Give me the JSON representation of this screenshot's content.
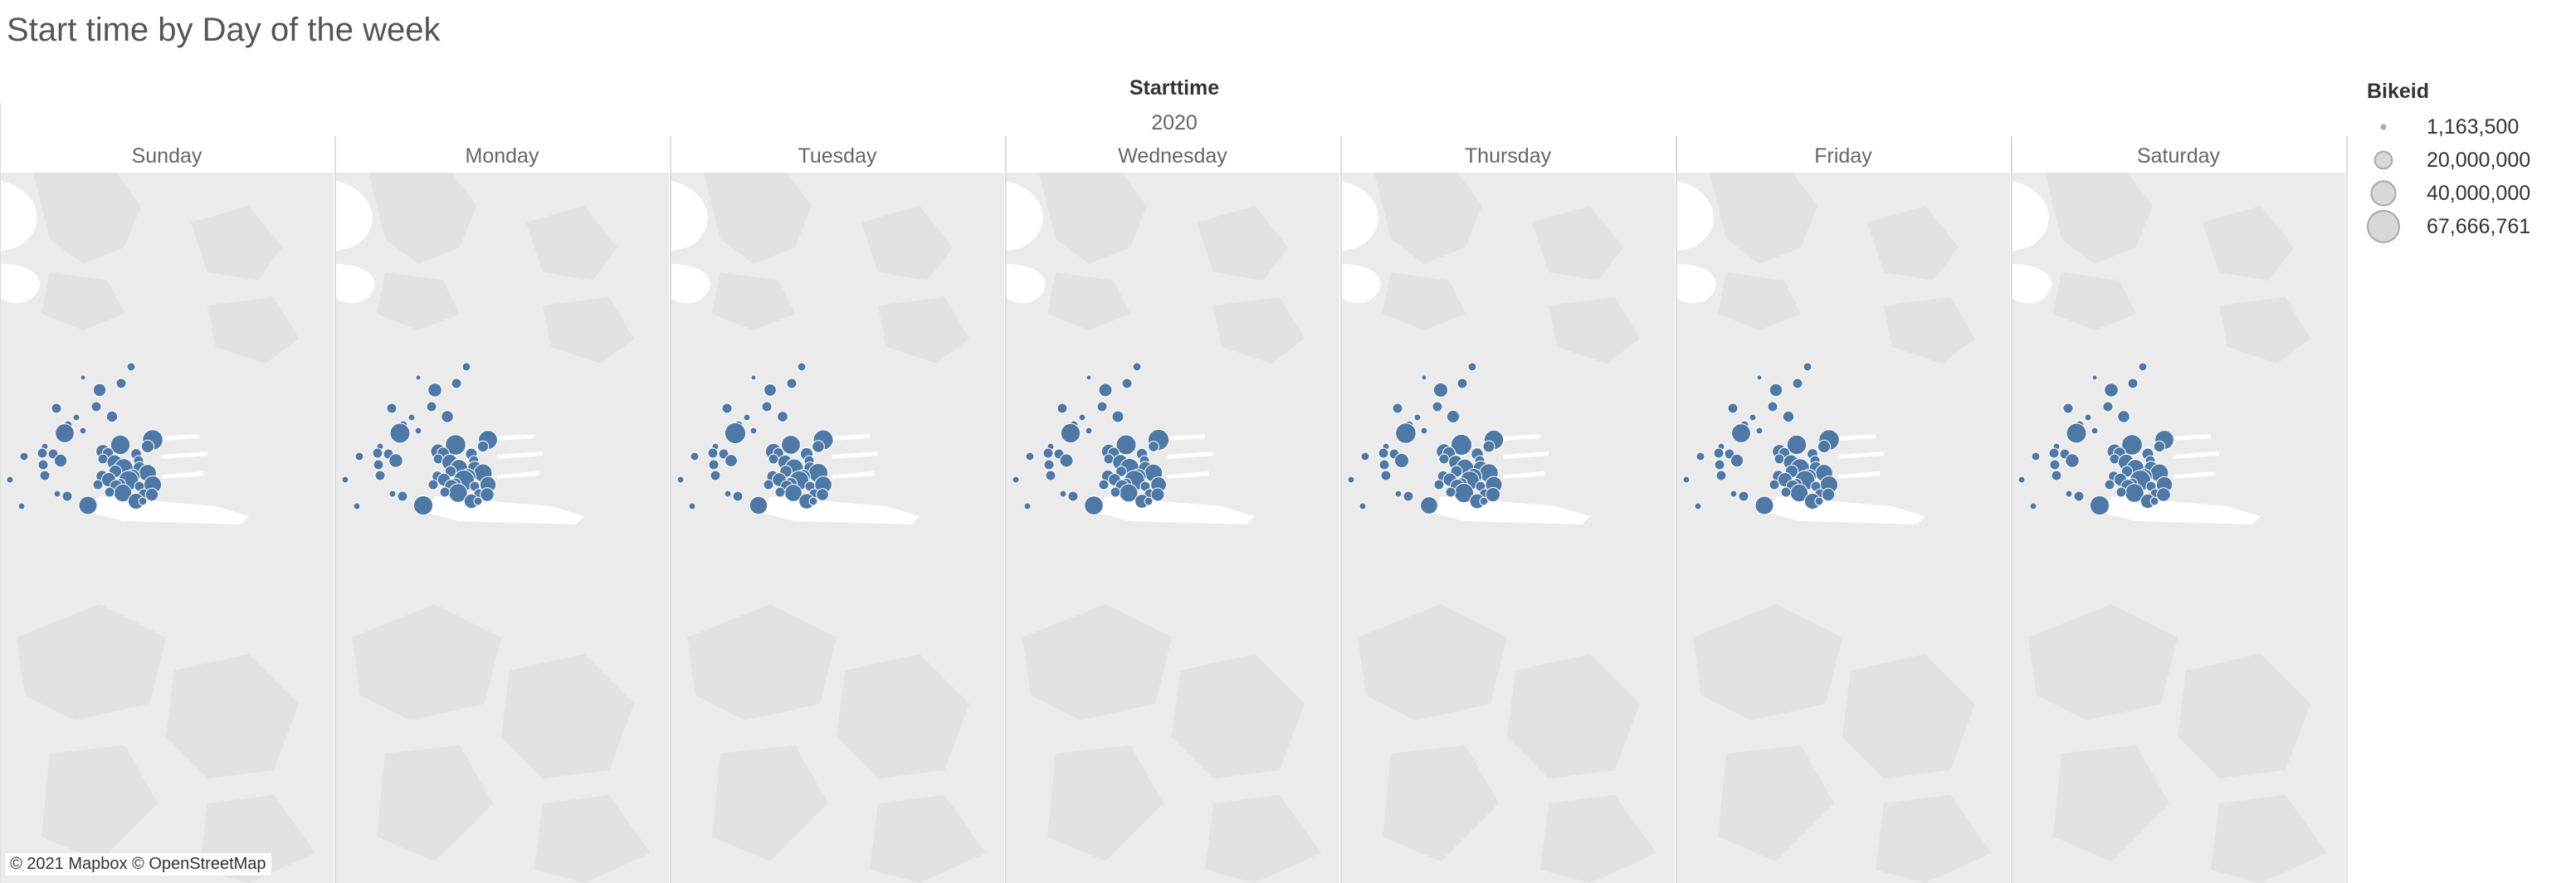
{
  "title": "Start time by Day of the week",
  "column_header": "Starttime",
  "year": "2020",
  "days": [
    "Sunday",
    "Monday",
    "Tuesday",
    "Wednesday",
    "Thursday",
    "Friday",
    "Saturday"
  ],
  "legend": {
    "title": "Bikeid",
    "items": [
      {
        "label": "1,163,500",
        "value": 1163500
      },
      {
        "label": "20,000,000",
        "value": 20000000
      },
      {
        "label": "40,000,000",
        "value": 40000000
      },
      {
        "label": "67,666,761",
        "value": 67666761
      }
    ]
  },
  "attribution": "© 2021 Mapbox © OpenStreetMap",
  "colors": {
    "mark": "#4e79a7",
    "mark_stroke": "#ffffff",
    "map_bg": "#ebebeb",
    "map_shape": "#e2e2e2",
    "water": "#ffffff",
    "legend_fill": "#d8d8d8",
    "legend_stroke": "#a9a9a9",
    "divider": "#dddddd"
  }
}
